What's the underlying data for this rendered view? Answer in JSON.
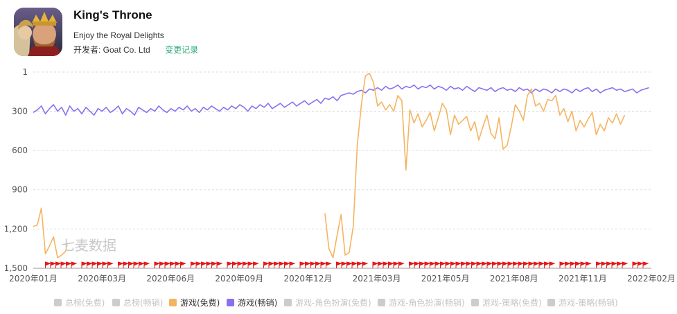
{
  "app": {
    "title": "King's Throne",
    "subtitle": "Enjoy the Royal Delights",
    "developer_label": "开发者: Goat Co. Ltd",
    "changelog_link": "变更记录"
  },
  "watermark": "七麦数据",
  "colors": {
    "free": "#f5b461",
    "grossing": "#8a70f0",
    "marker": "#e31a1a",
    "inactive": "#cccccc",
    "accent": "#2aa876"
  },
  "legend": [
    {
      "label": "总榜(免费)",
      "active": false,
      "color": "#cccccc"
    },
    {
      "label": "总榜(畅销)",
      "active": false,
      "color": "#cccccc"
    },
    {
      "label": "游戏(免费)",
      "active": true,
      "color": "#f5b461"
    },
    {
      "label": "游戏(畅销)",
      "active": true,
      "color": "#8a70f0"
    },
    {
      "label": "游戏-角色扮演(免费)",
      "active": false,
      "color": "#cccccc"
    },
    {
      "label": "游戏-角色扮演(畅销)",
      "active": false,
      "color": "#cccccc"
    },
    {
      "label": "游戏-策略(免费)",
      "active": false,
      "color": "#cccccc"
    },
    {
      "label": "游戏-策略(畅销)",
      "active": false,
      "color": "#cccccc"
    }
  ],
  "chart_data": {
    "type": "line",
    "y_reversed": true,
    "ylim": [
      1,
      1500
    ],
    "y_ticks": [
      {
        "value": 1,
        "label": "1"
      },
      {
        "value": 300,
        "label": "300"
      },
      {
        "value": 600,
        "label": "600"
      },
      {
        "value": 900,
        "label": "900"
      },
      {
        "value": 1200,
        "label": "1,200"
      },
      {
        "value": 1500,
        "label": "1,500"
      }
    ],
    "x_ticks": [
      "2020年01月",
      "2020年03月",
      "2020年06月",
      "2020年09月",
      "2020年12月",
      "2021年03月",
      "2021年05月",
      "2021年08月",
      "2021年11月",
      "2022年02月"
    ],
    "x_range": [
      0,
      763
    ],
    "grid": "horizontal-dashed",
    "series": [
      {
        "name": "游戏(畅销)",
        "color": "#8a70f0",
        "segments": [
          [
            [
              0,
              310
            ],
            [
              5,
              290
            ],
            [
              10,
              260
            ],
            [
              15,
              320
            ],
            [
              20,
              280
            ],
            [
              25,
              250
            ],
            [
              30,
              300
            ],
            [
              35,
              270
            ],
            [
              40,
              330
            ],
            [
              45,
              260
            ],
            [
              50,
              300
            ],
            [
              55,
              280
            ],
            [
              60,
              320
            ],
            [
              65,
              270
            ],
            [
              70,
              300
            ],
            [
              75,
              330
            ],
            [
              80,
              280
            ],
            [
              85,
              300
            ],
            [
              90,
              270
            ],
            [
              95,
              310
            ],
            [
              100,
              290
            ],
            [
              105,
              260
            ],
            [
              110,
              320
            ],
            [
              115,
              280
            ],
            [
              120,
              300
            ],
            [
              125,
              330
            ],
            [
              130,
              270
            ],
            [
              135,
              290
            ],
            [
              140,
              310
            ],
            [
              145,
              280
            ],
            [
              150,
              300
            ],
            [
              155,
              260
            ],
            [
              160,
              290
            ],
            [
              165,
              310
            ],
            [
              170,
              280
            ],
            [
              175,
              300
            ],
            [
              180,
              270
            ],
            [
              185,
              290
            ],
            [
              190,
              260
            ],
            [
              195,
              300
            ],
            [
              200,
              280
            ],
            [
              205,
              310
            ],
            [
              210,
              270
            ],
            [
              215,
              290
            ],
            [
              220,
              260
            ],
            [
              225,
              280
            ],
            [
              230,
              300
            ],
            [
              235,
              270
            ],
            [
              240,
              290
            ],
            [
              245,
              260
            ],
            [
              250,
              280
            ],
            [
              255,
              250
            ],
            [
              260,
              270
            ],
            [
              265,
              300
            ],
            [
              270,
              260
            ],
            [
              275,
              280
            ],
            [
              280,
              250
            ],
            [
              285,
              270
            ],
            [
              290,
              240
            ],
            [
              295,
              280
            ],
            [
              300,
              260
            ],
            [
              305,
              240
            ],
            [
              310,
              270
            ],
            [
              315,
              250
            ],
            [
              320,
              230
            ],
            [
              325,
              260
            ],
            [
              330,
              240
            ],
            [
              335,
              220
            ],
            [
              340,
              250
            ],
            [
              345,
              230
            ],
            [
              350,
              210
            ],
            [
              355,
              240
            ],
            [
              360,
              200
            ],
            [
              365,
              210
            ],
            [
              370,
              190
            ],
            [
              375,
              220
            ],
            [
              380,
              180
            ],
            [
              385,
              170
            ],
            [
              390,
              160
            ],
            [
              395,
              170
            ],
            [
              400,
              150
            ],
            [
              405,
              140
            ],
            [
              410,
              160
            ],
            [
              415,
              130
            ],
            [
              420,
              140
            ],
            [
              425,
              120
            ],
            [
              430,
              140
            ],
            [
              435,
              110
            ],
            [
              440,
              130
            ],
            [
              445,
              120
            ],
            [
              450,
              100
            ],
            [
              455,
              130
            ],
            [
              460,
              110
            ],
            [
              465,
              120
            ],
            [
              470,
              100
            ],
            [
              475,
              130
            ],
            [
              480,
              110
            ],
            [
              485,
              120
            ],
            [
              490,
              100
            ],
            [
              495,
              130
            ],
            [
              500,
              110
            ],
            [
              505,
              120
            ],
            [
              510,
              140
            ],
            [
              515,
              110
            ],
            [
              520,
              130
            ],
            [
              525,
              120
            ],
            [
              530,
              140
            ],
            [
              535,
              110
            ],
            [
              540,
              130
            ],
            [
              545,
              150
            ],
            [
              550,
              120
            ],
            [
              555,
              130
            ],
            [
              560,
              140
            ],
            [
              565,
              120
            ],
            [
              570,
              150
            ],
            [
              575,
              130
            ],
            [
              580,
              120
            ],
            [
              585,
              140
            ],
            [
              590,
              130
            ],
            [
              595,
              150
            ],
            [
              600,
              120
            ],
            [
              605,
              140
            ],
            [
              610,
              130
            ],
            [
              615,
              160
            ],
            [
              620,
              130
            ],
            [
              625,
              150
            ],
            [
              630,
              130
            ],
            [
              635,
              140
            ],
            [
              640,
              160
            ],
            [
              645,
              130
            ],
            [
              650,
              150
            ],
            [
              655,
              130
            ],
            [
              660,
              140
            ],
            [
              665,
              160
            ],
            [
              670,
              130
            ],
            [
              675,
              150
            ],
            [
              680,
              130
            ],
            [
              685,
              120
            ],
            [
              690,
              150
            ],
            [
              695,
              130
            ],
            [
              700,
              160
            ],
            [
              705,
              140
            ],
            [
              710,
              130
            ],
            [
              715,
              120
            ],
            [
              720,
              140
            ],
            [
              725,
              130
            ],
            [
              730,
              150
            ],
            [
              735,
              140
            ],
            [
              740,
              130
            ],
            [
              745,
              160
            ],
            [
              750,
              140
            ],
            [
              755,
              130
            ],
            [
              760,
              120
            ]
          ]
        ]
      },
      {
        "name": "游戏(免费)",
        "color": "#f5b461",
        "segments": [
          [
            [
              0,
              1180
            ],
            [
              5,
              1170
            ],
            [
              10,
              1040
            ],
            [
              15,
              1390
            ],
            [
              20,
              1330
            ],
            [
              25,
              1260
            ],
            [
              30,
              1420
            ],
            [
              35,
              1400
            ],
            [
              40,
              1370
            ],
            [
              42,
              1310
            ]
          ],
          [
            [
              360,
              1080
            ],
            [
              365,
              1350
            ],
            [
              370,
              1420
            ],
            [
              375,
              1250
            ],
            [
              380,
              1090
            ],
            [
              385,
              1400
            ],
            [
              390,
              1380
            ],
            [
              395,
              1180
            ],
            [
              400,
              560
            ],
            [
              405,
              250
            ],
            [
              410,
              30
            ],
            [
              415,
              10
            ],
            [
              420,
              80
            ],
            [
              425,
              260
            ],
            [
              430,
              230
            ],
            [
              435,
              290
            ],
            [
              440,
              250
            ],
            [
              445,
              300
            ],
            [
              450,
              180
            ],
            [
              455,
              220
            ],
            [
              460,
              750
            ],
            [
              465,
              290
            ],
            [
              470,
              390
            ],
            [
              475,
              320
            ],
            [
              480,
              420
            ],
            [
              485,
              370
            ],
            [
              490,
              310
            ],
            [
              495,
              450
            ],
            [
              500,
              350
            ],
            [
              505,
              240
            ],
            [
              510,
              290
            ],
            [
              515,
              480
            ],
            [
              520,
              330
            ],
            [
              525,
              400
            ],
            [
              530,
              370
            ],
            [
              535,
              340
            ],
            [
              540,
              450
            ],
            [
              545,
              380
            ],
            [
              550,
              520
            ],
            [
              555,
              420
            ],
            [
              560,
              330
            ],
            [
              565,
              470
            ],
            [
              570,
              510
            ],
            [
              575,
              350
            ],
            [
              580,
              590
            ],
            [
              585,
              560
            ],
            [
              590,
              420
            ],
            [
              595,
              250
            ],
            [
              600,
              300
            ],
            [
              605,
              370
            ],
            [
              610,
              180
            ],
            [
              615,
              130
            ],
            [
              620,
              260
            ],
            [
              625,
              240
            ],
            [
              630,
              300
            ],
            [
              635,
              210
            ],
            [
              640,
              220
            ],
            [
              645,
              180
            ],
            [
              650,
              330
            ],
            [
              655,
              280
            ],
            [
              660,
              380
            ],
            [
              665,
              300
            ],
            [
              670,
              450
            ],
            [
              675,
              370
            ],
            [
              680,
              420
            ],
            [
              685,
              360
            ],
            [
              690,
              310
            ],
            [
              695,
              480
            ],
            [
              700,
              400
            ],
            [
              705,
              450
            ],
            [
              710,
              350
            ],
            [
              715,
              390
            ],
            [
              720,
              320
            ],
            [
              725,
              400
            ],
            [
              730,
              330
            ]
          ]
        ]
      }
    ],
    "markers_region": [
      0,
      763
    ],
    "markers_rank": 1500
  }
}
